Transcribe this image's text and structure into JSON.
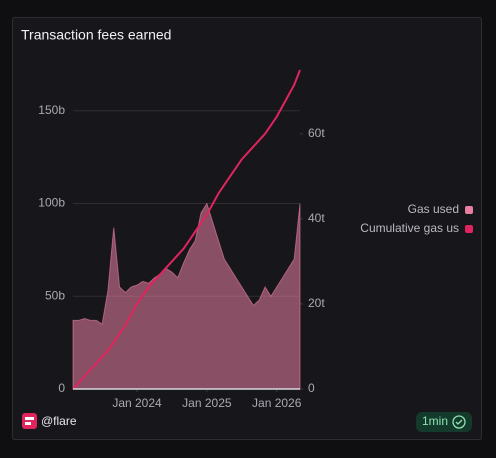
{
  "chart_data": {
    "type": "area-line",
    "title": "Transaction fees earned",
    "x": [
      "2023-02",
      "2023-03",
      "2023-04",
      "2023-05",
      "2023-06",
      "2023-07",
      "2023-08",
      "2023-09",
      "2023-10",
      "2023-11",
      "2023-12",
      "2024-01",
      "2024-02",
      "2024-03",
      "2024-04",
      "2024-05",
      "2024-06",
      "2024-07",
      "2024-08",
      "2024-09",
      "2024-10",
      "2024-11",
      "2024-12",
      "2025-01",
      "2025-02",
      "2025-03",
      "2025-04",
      "2025-05",
      "2025-06",
      "2025-07",
      "2025-08",
      "2025-09",
      "2025-10",
      "2025-11",
      "2025-12",
      "2026-01",
      "2026-02",
      "2026-03",
      "2026-04",
      "2026-05"
    ],
    "series": [
      {
        "name": "Gas used",
        "color": "#e87fa0",
        "values": [
          37,
          37,
          38,
          37,
          37,
          35,
          53,
          87,
          55,
          52,
          55,
          56,
          58,
          57,
          60,
          62,
          65,
          63,
          60,
          68,
          75,
          80,
          95,
          100,
          90,
          80,
          70,
          65,
          60,
          55,
          50,
          45,
          48,
          55,
          50,
          55,
          60,
          65,
          70,
          100
        ]
      },
      {
        "name": "Cumulative gas us",
        "color": "#e0245e",
        "axis": "y2",
        "values": [
          0,
          1.5,
          3,
          4.5,
          6,
          7.5,
          9,
          11,
          13,
          15,
          17.5,
          20,
          22,
          24,
          25.5,
          27,
          28.5,
          30,
          31.5,
          33,
          35,
          37,
          39,
          41,
          43.5,
          46,
          48,
          50,
          52,
          54,
          55.5,
          57,
          58.5,
          60,
          62,
          64,
          66.5,
          69,
          71.5,
          75
        ]
      }
    ],
    "xlim": [
      "2023-02",
      "2026-05"
    ],
    "xticks": [
      {
        "value": "2024-01",
        "label": "Jan 2024"
      },
      {
        "value": "2025-01",
        "label": "Jan 2025"
      },
      {
        "value": "2026-01",
        "label": "Jan 2026"
      }
    ],
    "ylim": [
      0,
      172
    ],
    "yticks": [
      0,
      {
        "value": 50,
        "label": "50b"
      },
      {
        "value": 100,
        "label": "100b"
      },
      {
        "value": 150,
        "label": "150b"
      }
    ],
    "y2lim": [
      0,
      75
    ],
    "y2ticks": [
      0,
      {
        "value": 20,
        "label": "20t"
      },
      {
        "value": 40,
        "label": "40t"
      },
      {
        "value": 60,
        "label": "60t"
      }
    ],
    "grid": true
  },
  "footer": {
    "handle": "@flare",
    "badge": "1min"
  }
}
